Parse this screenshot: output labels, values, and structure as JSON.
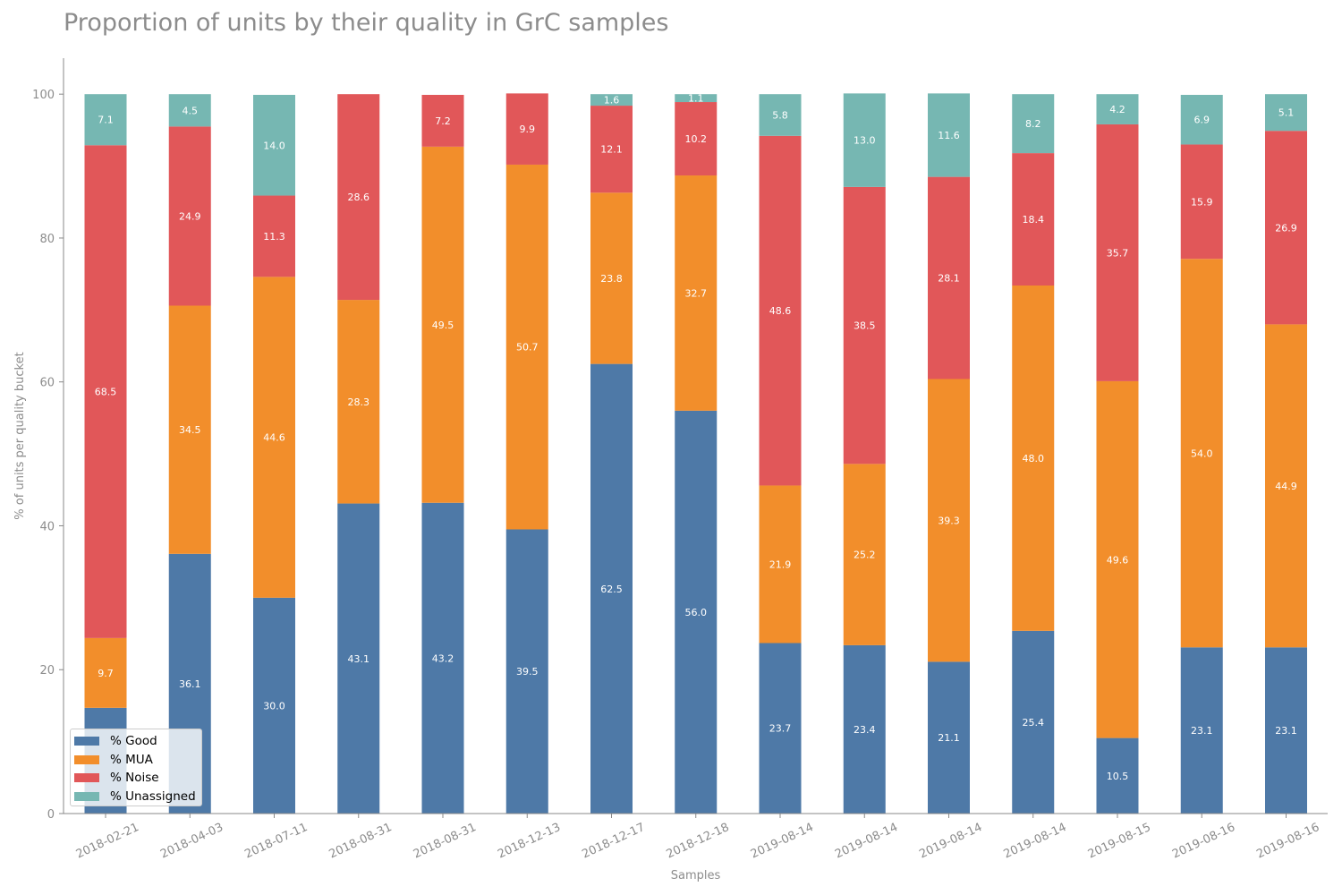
{
  "chart_data": {
    "type": "bar",
    "stacked": true,
    "title": "Proportion of units by their quality in GrC samples",
    "xlabel": "Samples",
    "ylabel": "% of units per quality bucket",
    "ylim": [
      0,
      105
    ],
    "yticks": [
      0,
      20,
      40,
      60,
      80,
      100
    ],
    "grid": false,
    "legend_position": "lower-left",
    "categories": [
      "2018-02-21",
      "2018-04-03",
      "2018-07-11",
      "2018-08-31",
      "2018-08-31",
      "2018-12-13",
      "2018-12-17",
      "2018-12-18",
      "2019-08-14",
      "2019-08-14",
      "2019-08-14",
      "2019-08-14",
      "2019-08-15",
      "2019-08-16",
      "2019-08-16"
    ],
    "series": [
      {
        "name": "% Good",
        "color": "#4e79a7",
        "values": [
          14.7,
          36.1,
          30.0,
          43.1,
          43.2,
          39.5,
          62.5,
          56.0,
          23.7,
          23.4,
          21.1,
          25.4,
          10.5,
          23.1,
          23.1
        ],
        "labels": [
          "",
          "36.1",
          "30.0",
          "43.1",
          "43.2",
          "39.5",
          "62.5",
          "56.0",
          "23.7",
          "23.4",
          "21.1",
          "25.4",
          "10.5",
          "23.1",
          "23.1"
        ]
      },
      {
        "name": "% MUA",
        "color": "#f28e2b",
        "values": [
          9.7,
          34.5,
          44.6,
          28.3,
          49.5,
          50.7,
          23.8,
          32.7,
          21.9,
          25.2,
          39.3,
          48.0,
          49.6,
          54.0,
          44.9
        ],
        "labels": [
          "9.7",
          "34.5",
          "44.6",
          "28.3",
          "49.5",
          "50.7",
          "23.8",
          "32.7",
          "21.9",
          "25.2",
          "39.3",
          "48.0",
          "49.6",
          "54.0",
          "44.9"
        ]
      },
      {
        "name": "% Noise",
        "color": "#e15759",
        "values": [
          68.5,
          24.9,
          11.3,
          28.6,
          7.2,
          9.9,
          12.1,
          10.2,
          48.6,
          38.5,
          28.1,
          18.4,
          35.7,
          15.9,
          26.9
        ],
        "labels": [
          "68.5",
          "24.9",
          "11.3",
          "28.6",
          "7.2",
          "9.9",
          "12.1",
          "10.2",
          "48.6",
          "38.5",
          "28.1",
          "18.4",
          "35.7",
          "15.9",
          "26.9"
        ]
      },
      {
        "name": "% Unassigned",
        "color": "#76b7b2",
        "values": [
          7.1,
          4.5,
          14.0,
          0.0,
          0.0,
          0.0,
          1.6,
          1.1,
          5.8,
          13.0,
          11.6,
          8.2,
          4.2,
          6.9,
          5.1
        ],
        "labels": [
          "7.1",
          "4.5",
          "14.0",
          "",
          "",
          "",
          "1.6",
          "1.1",
          "5.8",
          "13.0",
          "11.6",
          "8.2",
          "4.2",
          "6.9",
          "5.1"
        ]
      }
    ]
  }
}
